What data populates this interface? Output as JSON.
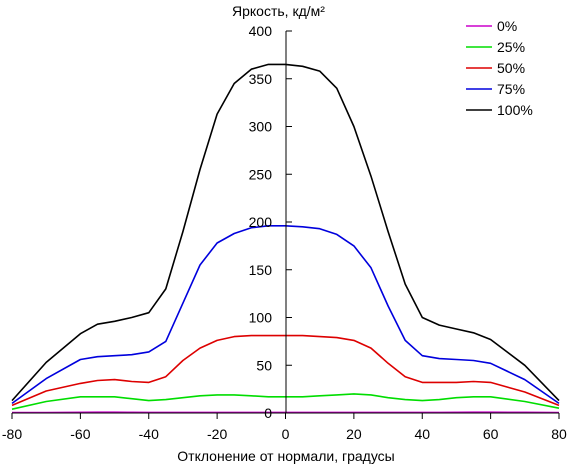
{
  "chart_data": {
    "type": "line",
    "ylabel": "Яркость, кд/м²",
    "xlabel": "Отклонение от нормали, градусы",
    "xlim": [
      -80,
      80
    ],
    "ylim": [
      0,
      400
    ],
    "x_ticks": [
      -80,
      -60,
      -40,
      -20,
      0,
      20,
      40,
      60,
      80
    ],
    "y_ticks": [
      0,
      50,
      100,
      150,
      200,
      250,
      300,
      350,
      400
    ],
    "x_tick_labels": [
      "-80",
      "-60",
      "-40",
      "-20",
      "0",
      "20",
      "40",
      "60",
      "80"
    ],
    "y_tick_labels": [
      "0",
      "50",
      "100",
      "150",
      "200",
      "250",
      "300",
      "350",
      "400"
    ],
    "legend_position": "top-right",
    "grid": false,
    "x": [
      -80,
      -70,
      -60,
      -55,
      -50,
      -45,
      -40,
      -35,
      -30,
      -25,
      -20,
      -15,
      -10,
      -5,
      0,
      5,
      10,
      15,
      20,
      25,
      30,
      35,
      40,
      45,
      50,
      55,
      60,
      70,
      80
    ],
    "series": [
      {
        "name": "0%",
        "color": "#cc00cc",
        "values": [
          0.5,
          0.5,
          0.7,
          0.8,
          0.8,
          0.7,
          0.6,
          0.6,
          0.6,
          0.6,
          0.6,
          0.6,
          0.6,
          0.6,
          0.6,
          0.6,
          0.6,
          0.6,
          0.6,
          0.6,
          0.6,
          0.6,
          0.6,
          0.6,
          0.7,
          0.8,
          0.8,
          0.7,
          0.5
        ]
      },
      {
        "name": "25%",
        "color": "#00dd00",
        "values": [
          4,
          12,
          17,
          17,
          17,
          15,
          13,
          14,
          16,
          18,
          19,
          19,
          18,
          17,
          17,
          17,
          18,
          19,
          20,
          19,
          16,
          14,
          13,
          14,
          16,
          17,
          17,
          12,
          5
        ]
      },
      {
        "name": "50%",
        "color": "#dd0000",
        "values": [
          8,
          23,
          31,
          34,
          35,
          33,
          32,
          38,
          55,
          68,
          76,
          80,
          81,
          81,
          81,
          81,
          80,
          79,
          76,
          68,
          52,
          38,
          32,
          32,
          32,
          33,
          32,
          22,
          8
        ]
      },
      {
        "name": "75%",
        "color": "#0000dd",
        "values": [
          10,
          36,
          56,
          59,
          60,
          61,
          64,
          75,
          115,
          155,
          178,
          188,
          194,
          196,
          196,
          195,
          193,
          187,
          175,
          152,
          112,
          76,
          60,
          57,
          56,
          55,
          52,
          35,
          10
        ]
      },
      {
        "name": "100%",
        "color": "#000000",
        "values": [
          13,
          53,
          83,
          93,
          96,
          100,
          105,
          130,
          190,
          255,
          313,
          345,
          360,
          365,
          365,
          363,
          358,
          340,
          300,
          248,
          190,
          135,
          100,
          92,
          88,
          84,
          77,
          50,
          13
        ]
      }
    ]
  }
}
